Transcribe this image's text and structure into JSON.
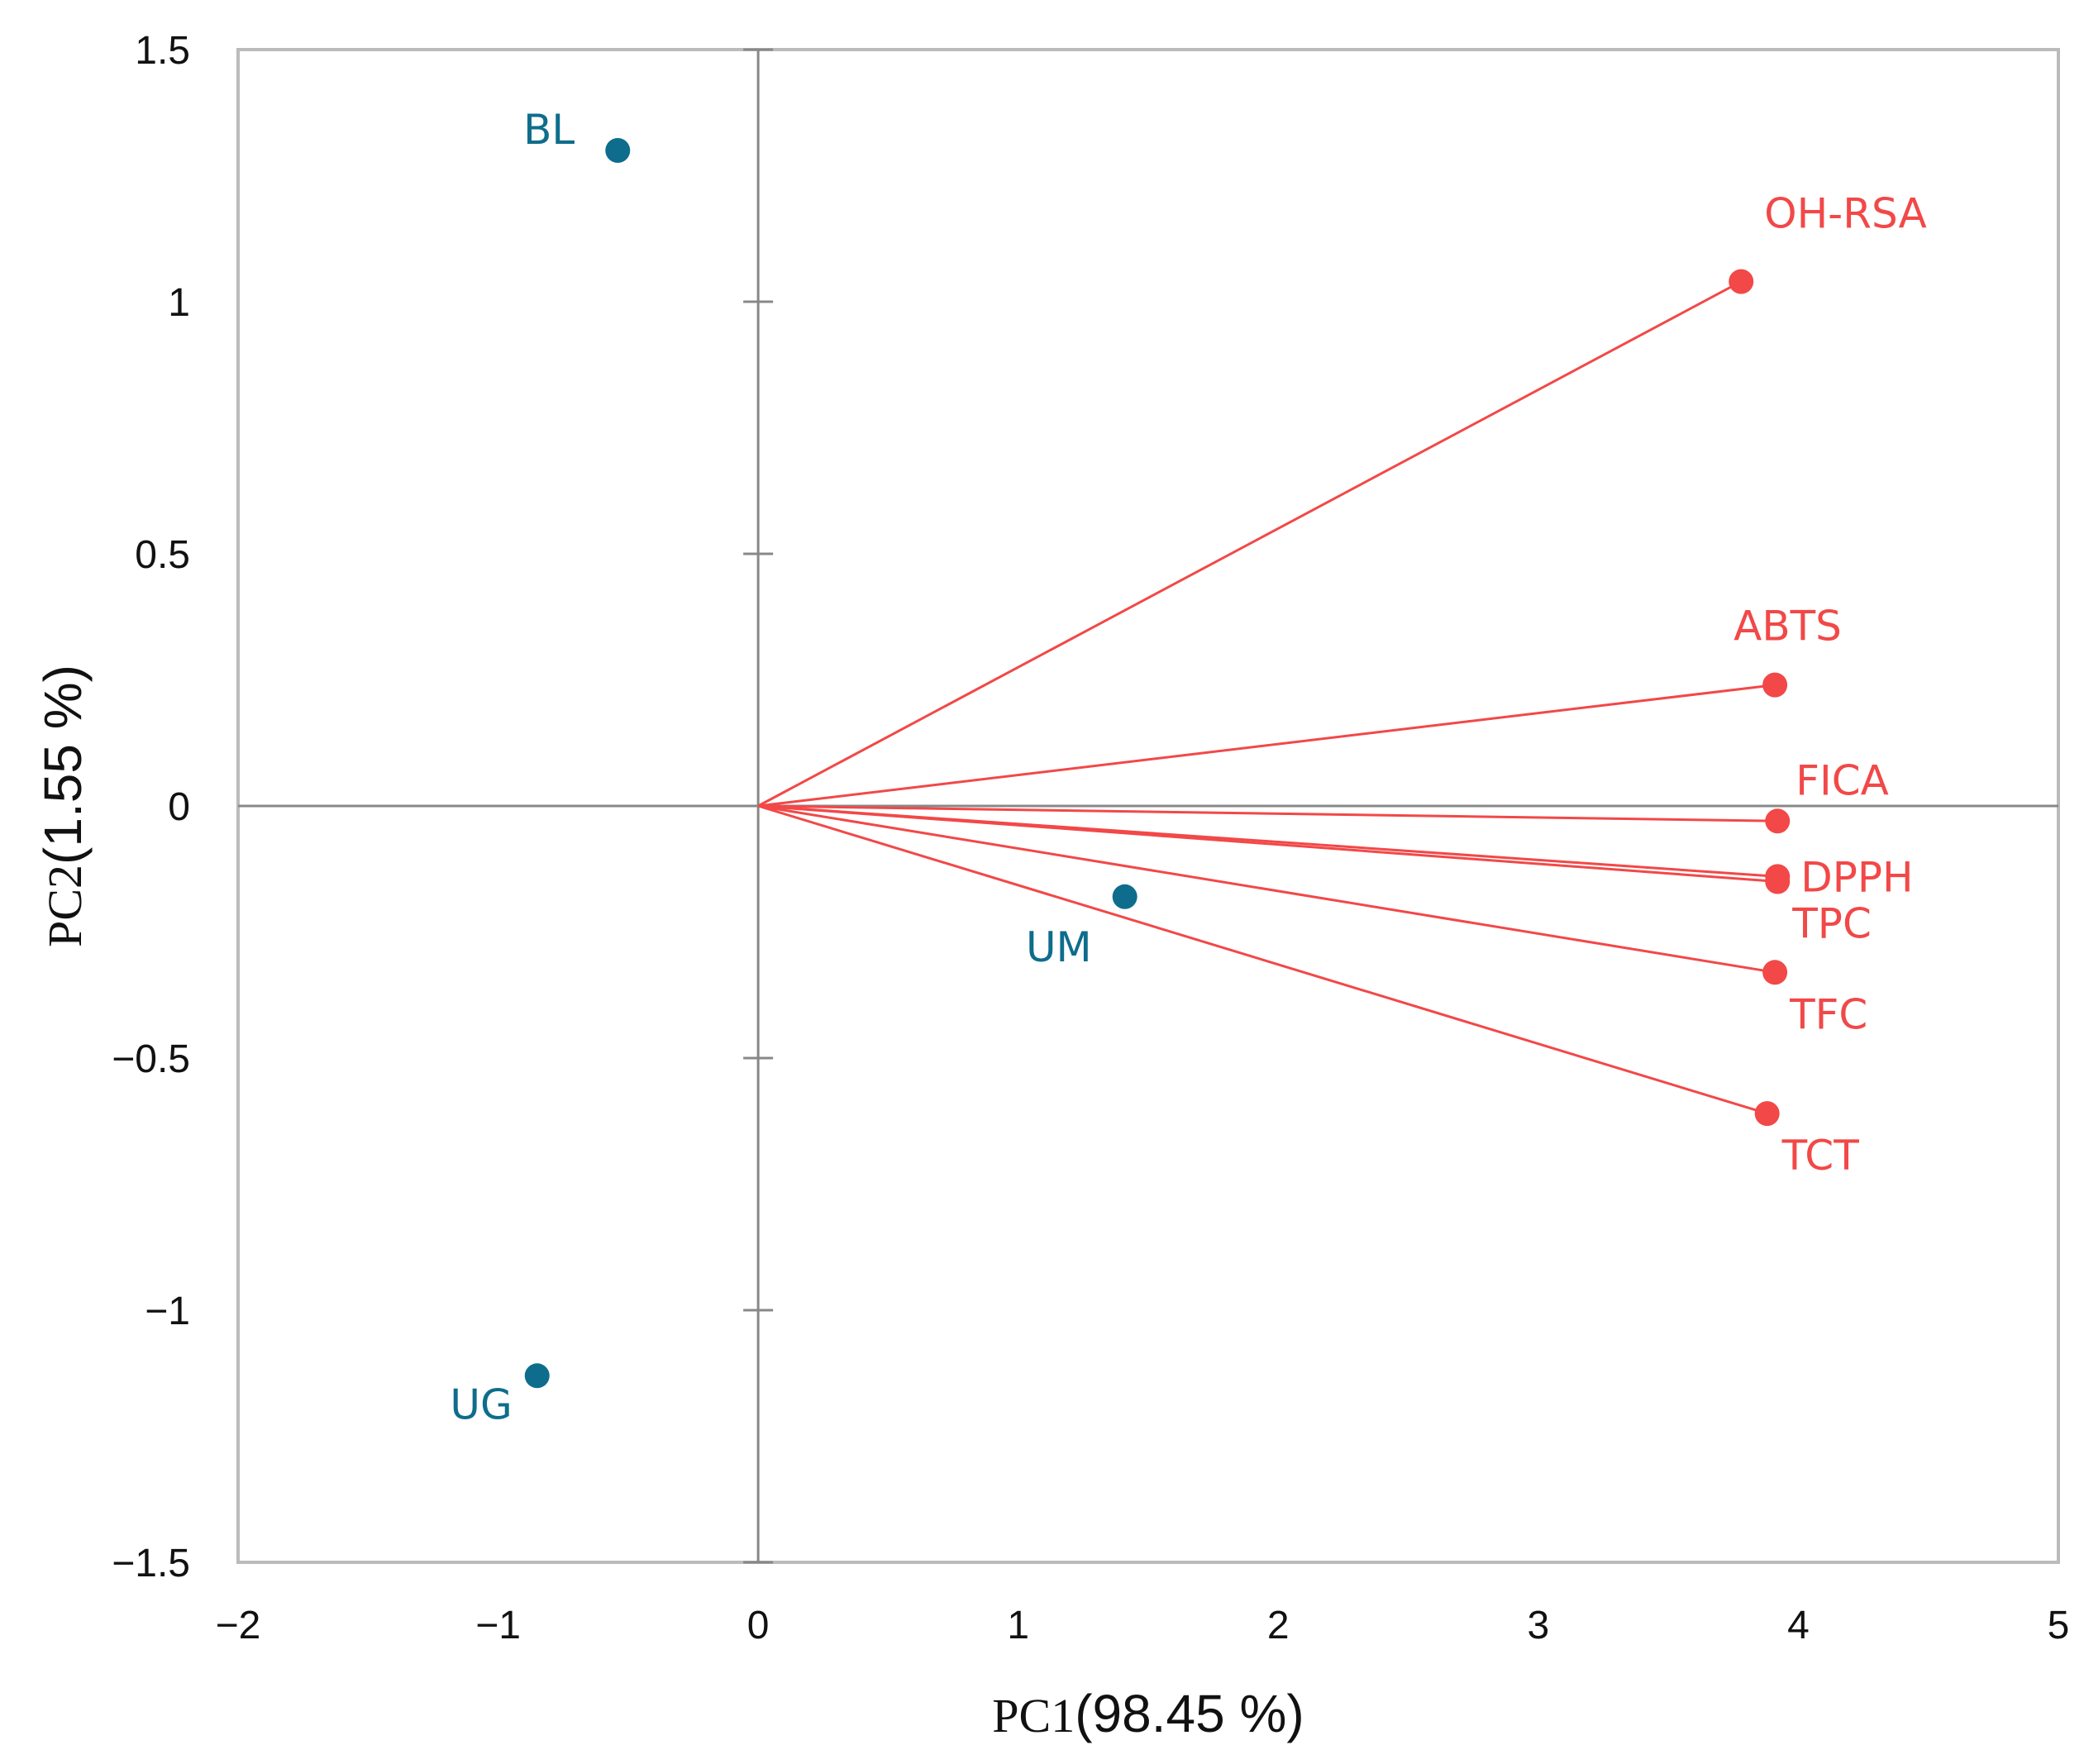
{
  "chart_data": {
    "type": "scatter",
    "subtype": "pca-biplot",
    "title": "",
    "xlabel": {
      "prefix": "PC1",
      "value": "(98.45 %)"
    },
    "ylabel": {
      "prefix": "PC2",
      "value": "(1.55 %)"
    },
    "xlim": [
      -2,
      5
    ],
    "ylim": [
      -1.5,
      1.5
    ],
    "xticks": [
      -2,
      -1,
      0,
      1,
      2,
      3,
      4,
      5
    ],
    "xtick_labels": [
      "−2",
      "−1",
      "0",
      "1",
      "2",
      "3",
      "4",
      "5"
    ],
    "yticks": [
      1.5,
      1,
      0.5,
      0,
      -0.5,
      -1,
      -1.5
    ],
    "ytick_labels": [
      "1.5",
      "1",
      "0.5",
      "0",
      "−0.5",
      "−1",
      "−1.5"
    ],
    "grid": false,
    "colors": {
      "scores": "#0e6d8c",
      "loadings": "#f24848",
      "axes": "#888888",
      "frame": "#bbbbbb"
    },
    "scores": [
      {
        "name": "BL",
        "x": -0.54,
        "y": 1.3
      },
      {
        "name": "UM",
        "x": 1.41,
        "y": -0.18
      },
      {
        "name": "UG",
        "x": -0.85,
        "y": -1.13
      }
    ],
    "loadings": [
      {
        "name": "OH-RSA",
        "x": 3.78,
        "y": 1.04
      },
      {
        "name": "ABTS",
        "x": 3.91,
        "y": 0.24
      },
      {
        "name": "FICA",
        "x": 3.92,
        "y": -0.03
      },
      {
        "name": "DPPH",
        "x": 3.92,
        "y": -0.14
      },
      {
        "name": "TPC",
        "x": 3.92,
        "y": -0.15
      },
      {
        "name": "TFC",
        "x": 3.91,
        "y": -0.33
      },
      {
        "name": "TCT",
        "x": 3.88,
        "y": -0.61
      }
    ]
  }
}
